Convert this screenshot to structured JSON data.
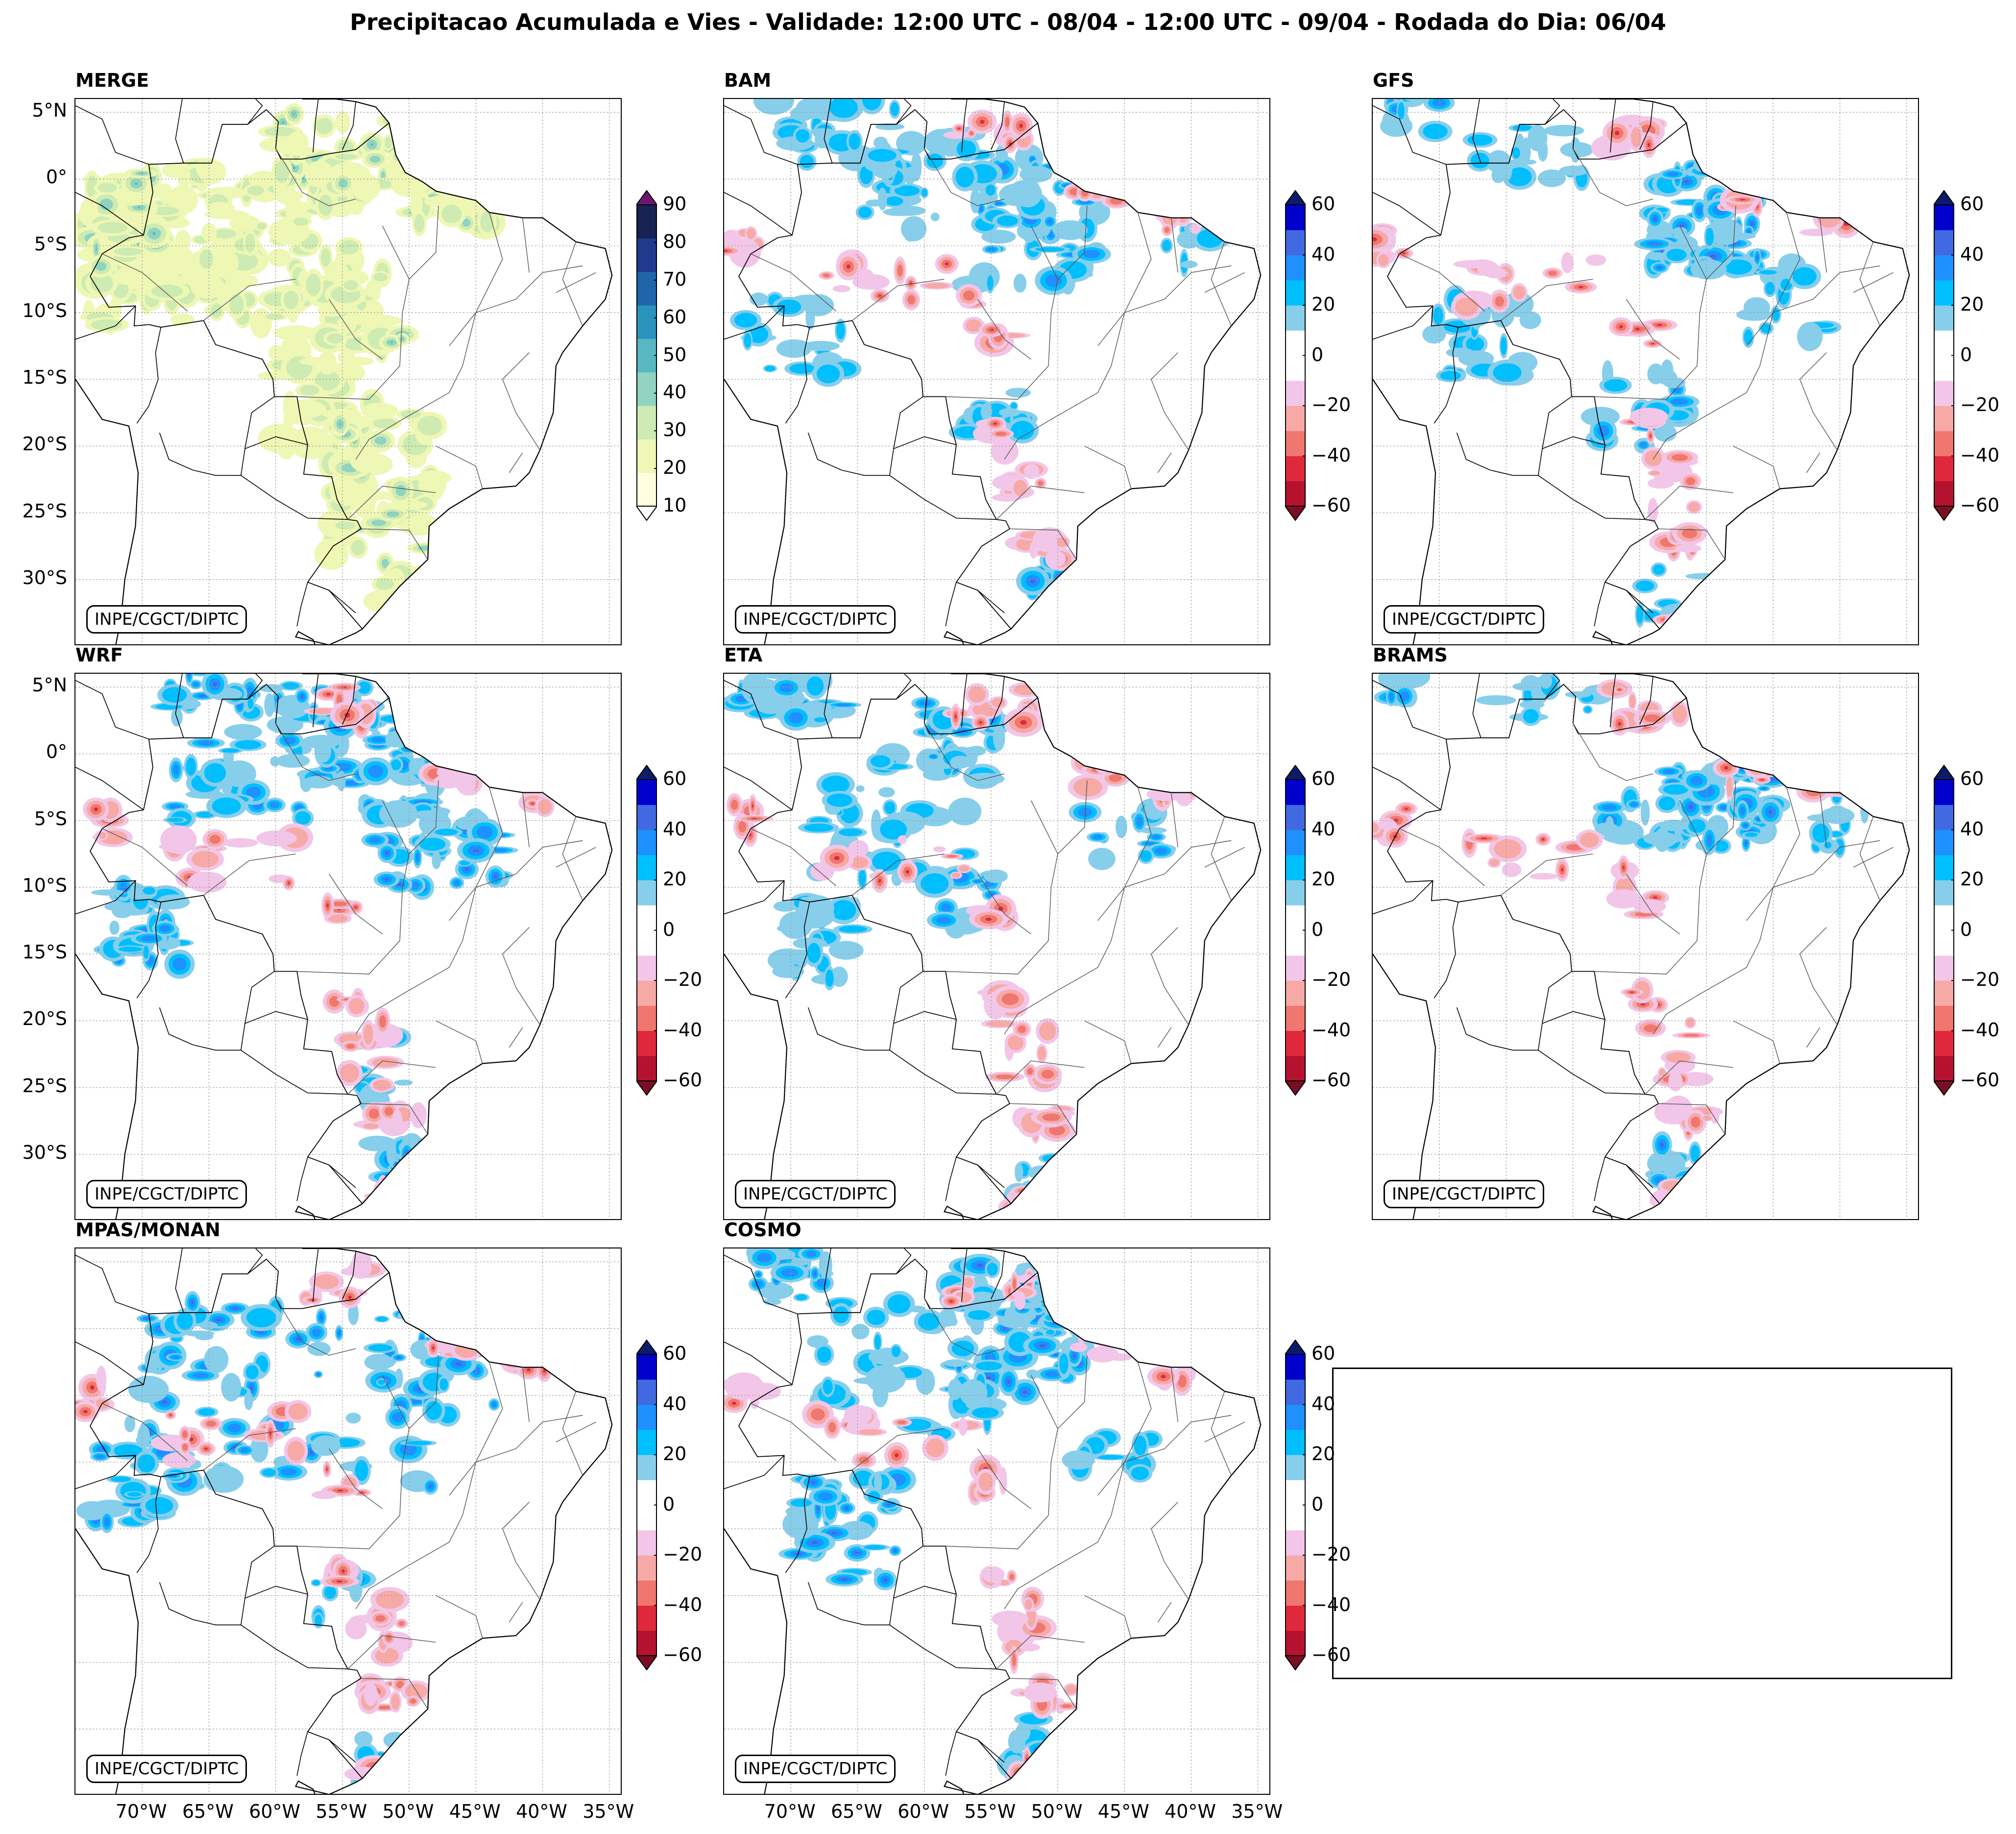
{
  "title": "Precipitacao Acumulada e Vies - Validade: 12:00 UTC - 08/04 - 12:00 UTC - 09/04 - Rodada do Dia: 06/04",
  "credit": "INPE/CGCT/DIPTC",
  "lat_ticks": [
    "5°N",
    "0°",
    "5°S",
    "10°S",
    "15°S",
    "20°S",
    "25°S",
    "30°S"
  ],
  "lon_ticks": [
    "70°W",
    "65°W",
    "60°W",
    "55°W",
    "50°W",
    "45°W",
    "40°W",
    "35°W"
  ],
  "merge_colorbar": {
    "ticks": [
      "90",
      "80",
      "70",
      "60",
      "50",
      "40",
      "30",
      "20",
      "10"
    ],
    "colors": [
      "#ffffe0",
      "#eef7b4",
      "#cdebb2",
      "#8fd3c0",
      "#58b8c3",
      "#2a94bf",
      "#1e65a9",
      "#213a8d",
      "#152252",
      "#701470"
    ],
    "extend_low": "#ffffff"
  },
  "bias_colorbar": {
    "ticks": [
      "60",
      "40",
      "20",
      "0",
      "−20",
      "−40",
      "−60"
    ],
    "colors": [
      "#7a0e23",
      "#b5122f",
      "#e0283c",
      "#f07670",
      "#f7a9a6",
      "#f2c6e8",
      "#ffffff",
      "#ffffff",
      "#87ceeb",
      "#00bfff",
      "#1e90ff",
      "#4169e1",
      "#0000cd",
      "#0d1b6b"
    ]
  },
  "panels": [
    {
      "id": "merge",
      "title": "MERGE",
      "kind": "merge"
    },
    {
      "id": "bam",
      "title": "BAM",
      "kind": "bias"
    },
    {
      "id": "gfs",
      "title": "GFS",
      "kind": "bias"
    },
    {
      "id": "wrf",
      "title": "WRF",
      "kind": "bias"
    },
    {
      "id": "eta",
      "title": "ETA",
      "kind": "bias"
    },
    {
      "id": "brams",
      "title": "BRAMS",
      "kind": "bias"
    },
    {
      "id": "mpas",
      "title": "MPAS/MONAN",
      "kind": "bias"
    },
    {
      "id": "cosmo",
      "title": "COSMO",
      "kind": "bias"
    }
  ]
}
